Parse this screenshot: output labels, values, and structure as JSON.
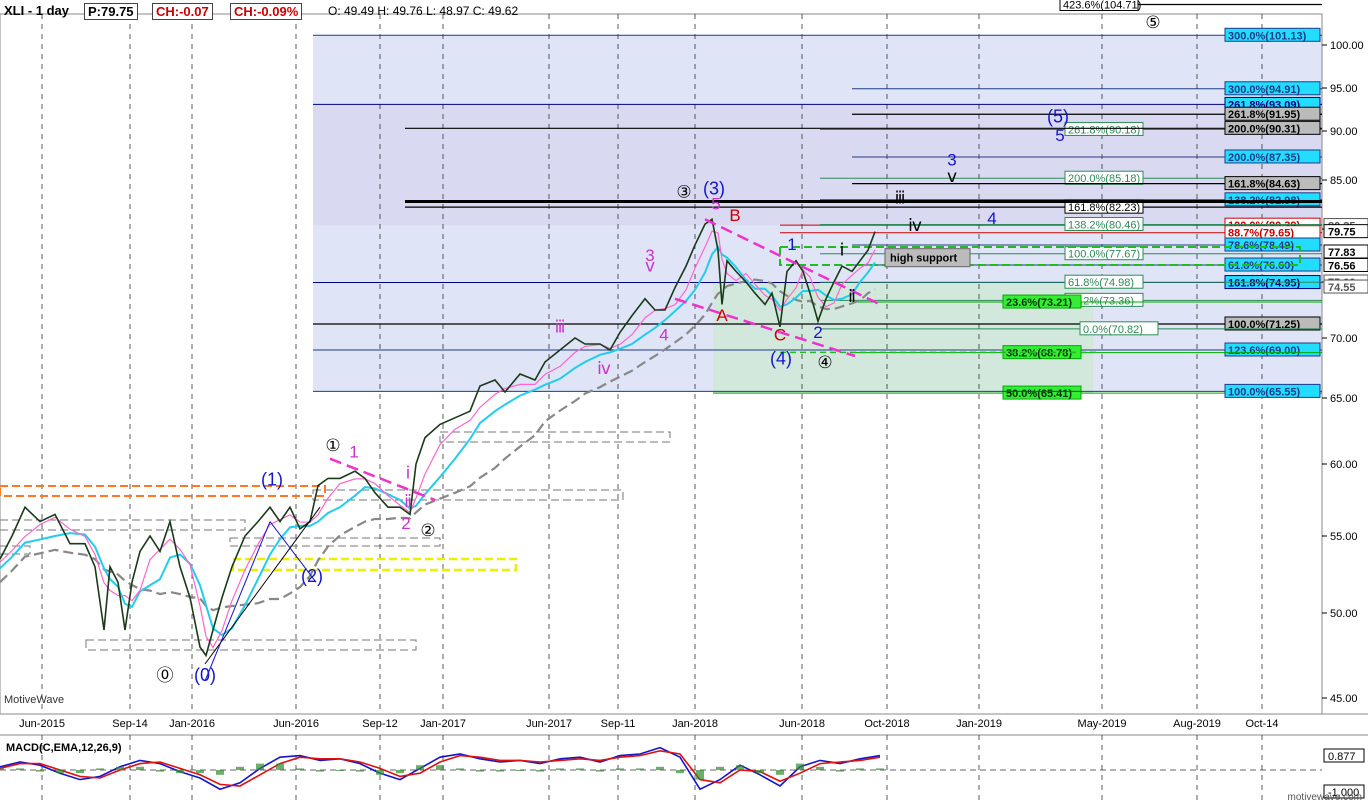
{
  "header": {
    "symbol": "XLI - 1 day",
    "price": "P:79.75",
    "change": "CH:-0.07",
    "change_pct": "CH:-0.09%",
    "ohlc": "O: 49.49  H: 49.76  L: 48.97  C: 49.62"
  },
  "watermark_left": "MotiveWave",
  "watermark_right": "motivewave.com",
  "chart_data": [
    {
      "type": "line",
      "title": "",
      "ylim": [
        43.5,
        104.5
      ],
      "y_ticks": [
        45,
        50,
        55,
        60,
        65,
        70,
        75,
        80,
        85,
        90,
        95,
        100
      ],
      "x_ticks": [
        "Jun-2015",
        "Sep-14",
        "Jan-2016",
        "Jun-2016",
        "Sep-12",
        "Jan-2017",
        "Jun-2017",
        "Sep-11",
        "Jan-2018",
        "Jun-2018",
        "Oct-2018",
        "Jan-2019",
        "May-2019",
        "Aug-2019",
        "Oct-14"
      ],
      "price_path": [
        [
          0,
          53.5
        ],
        [
          12,
          55
        ],
        [
          25,
          57
        ],
        [
          40,
          56
        ],
        [
          55,
          56.5
        ],
        [
          70,
          54.5
        ],
        [
          85,
          54.5
        ],
        [
          95,
          53
        ],
        [
          104,
          49
        ],
        [
          110,
          53
        ],
        [
          118,
          52
        ],
        [
          125,
          49
        ],
        [
          132,
          52
        ],
        [
          140,
          54
        ],
        [
          150,
          55
        ],
        [
          160,
          54
        ],
        [
          170,
          56
        ],
        [
          180,
          53
        ],
        [
          190,
          51
        ],
        [
          200,
          48
        ],
        [
          206,
          47.5
        ],
        [
          213,
          49
        ],
        [
          222,
          51
        ],
        [
          232,
          53
        ],
        [
          245,
          55
        ],
        [
          258,
          56
        ],
        [
          270,
          57
        ],
        [
          280,
          56
        ],
        [
          290,
          57
        ],
        [
          300,
          55.5
        ],
        [
          310,
          56
        ],
        [
          318,
          58.5
        ],
        [
          328,
          59
        ],
        [
          340,
          59
        ],
        [
          355,
          59.5
        ],
        [
          365,
          59
        ],
        [
          375,
          58
        ],
        [
          388,
          57
        ],
        [
          400,
          57
        ],
        [
          410,
          56.5
        ],
        [
          416,
          60
        ],
        [
          425,
          62
        ],
        [
          440,
          63
        ],
        [
          455,
          63.5
        ],
        [
          470,
          64
        ],
        [
          480,
          66
        ],
        [
          495,
          66.5
        ],
        [
          505,
          65.5
        ],
        [
          520,
          67
        ],
        [
          535,
          66.5
        ],
        [
          545,
          68
        ],
        [
          560,
          69
        ],
        [
          575,
          70
        ],
        [
          585,
          69.5
        ],
        [
          600,
          69.5
        ],
        [
          610,
          69
        ],
        [
          620,
          70.5
        ],
        [
          632,
          72
        ],
        [
          645,
          73.5
        ],
        [
          655,
          72.5
        ],
        [
          665,
          72.5
        ],
        [
          675,
          74.5
        ],
        [
          686,
          76.5
        ],
        [
          695,
          78.5
        ],
        [
          705,
          80.5
        ],
        [
          712,
          81
        ],
        [
          718,
          78
        ],
        [
          722,
          73
        ],
        [
          727,
          77
        ],
        [
          736,
          76
        ],
        [
          746,
          75
        ],
        [
          755,
          74
        ],
        [
          765,
          73
        ],
        [
          772,
          74
        ],
        [
          780,
          71
        ],
        [
          787,
          76
        ],
        [
          796,
          77
        ],
        [
          803,
          76
        ],
        [
          810,
          74
        ],
        [
          818,
          71.5
        ],
        [
          826,
          73.5
        ],
        [
          834,
          75
        ],
        [
          842,
          76.5
        ],
        [
          852,
          76
        ],
        [
          860,
          77
        ],
        [
          868,
          78
        ],
        [
          875,
          79.75
        ]
      ],
      "fib_levels": [
        {
          "label": "423.6%(104.71)",
          "price": 104.71,
          "color": "#000000"
        },
        {
          "label": "300.0%(101.13)",
          "price": 101.13,
          "color": "#1f3c88"
        },
        {
          "label": "300.0%(94.91)",
          "price": 94.91,
          "color": "#1f3c88"
        },
        {
          "label": "261.8%(93.09)",
          "price": 93.09,
          "color": "#000080"
        },
        {
          "label": "261.8%(91.95)",
          "price": 91.95,
          "color": "#000000"
        },
        {
          "label": "261.8%(90.18)",
          "price": 90.18,
          "color": "#2e8b57"
        },
        {
          "label": "200.0%(90.31)",
          "price": 90.31,
          "color": "#000000"
        },
        {
          "label": "200.0%(87.35)",
          "price": 87.35,
          "color": "#1f3c88"
        },
        {
          "label": "200.0%(85.18)",
          "price": 85.18,
          "color": "#2e8b57"
        },
        {
          "label": "161.8%(84.63)",
          "price": 84.63,
          "color": "#000000"
        },
        {
          "label": "138.2%(82.98)",
          "price": 82.98,
          "color": "#1f3c88"
        },
        {
          "label": "161.8%(82.23)",
          "price": 82.23,
          "color": "#000000"
        },
        {
          "label": "100.0%(80.39)",
          "price": 80.39,
          "color": "#cc0000"
        },
        {
          "label": "138.2%(80.46)",
          "price": 80.46,
          "color": "#2e8b57"
        },
        {
          "label": "88.7%(79.65)",
          "price": 79.65,
          "color": "#cc0000"
        },
        {
          "label": "78.6%(78.49)",
          "price": 78.49,
          "color": "#1f3c88"
        },
        {
          "label": "100.0%(77.67)",
          "price": 77.67,
          "color": "#2e8b57"
        },
        {
          "label": "61.8%(76.60)",
          "price": 76.6,
          "color": "#1f3c88"
        },
        {
          "label": "161.8%(74.95)",
          "price": 74.95,
          "color": "#000080"
        },
        {
          "label": "61.8%(74.98)",
          "price": 74.98,
          "color": "#2e8b57"
        },
        {
          "label": "38.2%(73.36)",
          "price": 73.36,
          "color": "#2e8b57"
        },
        {
          "label": "23.6%(73.21)",
          "price": 73.21,
          "color": "#00aa00"
        },
        {
          "label": "100.0%(71.25)",
          "price": 71.25,
          "color": "#000000"
        },
        {
          "label": "0.0%(70.82)",
          "price": 70.82,
          "color": "#2e8b57"
        },
        {
          "label": "123.6%(69.00)",
          "price": 69.0,
          "color": "#1f3c88"
        },
        {
          "label": "38.2%(68.78)",
          "price": 68.78,
          "color": "#00aa00"
        },
        {
          "label": "50.0%(65.41)",
          "price": 65.41,
          "color": "#00aa00"
        },
        {
          "label": "100.0%(65.55)",
          "price": 65.55,
          "color": "#1f3c88"
        }
      ],
      "price_markers": [
        {
          "label": "80.35",
          "price": 80.35,
          "color": "#555555"
        },
        {
          "label": "79.75",
          "price": 79.75,
          "color": "#000000"
        },
        {
          "label": "77.83",
          "price": 77.83,
          "color": "#000000"
        },
        {
          "label": "76.56",
          "price": 76.56,
          "color": "#000000"
        },
        {
          "label": "75.00",
          "price": 75.0,
          "color": "#555555"
        },
        {
          "label": "74.55",
          "price": 74.55,
          "color": "#555555"
        }
      ],
      "wave_labels": [
        {
          "text": "⓪",
          "price": 46,
          "color": "#000000"
        },
        {
          "text": "(0)",
          "price": 46,
          "color": "#1515cc"
        },
        {
          "text": "(1)",
          "price": 58.5,
          "color": "#1515cc"
        },
        {
          "text": "(2)",
          "price": 52,
          "color": "#1515cc"
        },
        {
          "text": "①",
          "price": 61,
          "color": "#000000"
        },
        {
          "text": "1",
          "price": 60.5,
          "color": "#cc33cc"
        },
        {
          "text": "2",
          "price": 55.5,
          "color": "#cc33cc"
        },
        {
          "text": "②",
          "price": 55,
          "color": "#000000"
        },
        {
          "text": "ⅰ",
          "price": 59,
          "color": "#cc33cc"
        },
        {
          "text": "ⅱ",
          "price": 57,
          "color": "#cc33cc"
        },
        {
          "text": "ⅲ",
          "price": 70.5,
          "color": "#cc33cc"
        },
        {
          "text": "ⅳ",
          "price": 67,
          "color": "#cc33cc"
        },
        {
          "text": "ⅴ",
          "price": 76,
          "color": "#cc33cc"
        },
        {
          "text": "3",
          "price": 77,
          "color": "#cc33cc"
        },
        {
          "text": "4",
          "price": 69.8,
          "color": "#cc33cc"
        },
        {
          "text": "③",
          "price": 83.2,
          "color": "#000000"
        },
        {
          "text": "(3)",
          "price": 83.5,
          "color": "#1515cc"
        },
        {
          "text": "5",
          "price": 82,
          "color": "#cc33cc"
        },
        {
          "text": "A",
          "price": 71.5,
          "color": "#cc0000"
        },
        {
          "text": "B",
          "price": 80.8,
          "color": "#cc0000"
        },
        {
          "text": "C",
          "price": 69.8,
          "color": "#cc0000"
        },
        {
          "text": "(4)",
          "price": 67.8,
          "color": "#1515cc"
        },
        {
          "text": "④",
          "price": 67.5,
          "color": "#000000"
        },
        {
          "text": "1",
          "price": 78,
          "color": "#1515cc"
        },
        {
          "text": "2",
          "price": 70,
          "color": "#1515cc"
        },
        {
          "text": "ⅰ",
          "price": 77.5,
          "color": "#000000"
        },
        {
          "text": "ⅱ",
          "price": 73.2,
          "color": "#000000"
        },
        {
          "text": "ⅲ",
          "price": 82.6,
          "color": "#000000"
        },
        {
          "text": "ⅳ",
          "price": 79.8,
          "color": "#000000"
        },
        {
          "text": "ⅴ",
          "price": 84.8,
          "color": "#000000"
        },
        {
          "text": "3",
          "price": 86.5,
          "color": "#1515cc"
        },
        {
          "text": "4",
          "price": 80.5,
          "color": "#1515cc"
        },
        {
          "text": "(5)",
          "price": 91,
          "color": "#1515cc"
        },
        {
          "text": "5",
          "price": 89,
          "color": "#1515cc"
        },
        {
          "text": "⑤",
          "price": 102,
          "color": "#000000"
        }
      ],
      "annotations": [
        "high support"
      ]
    },
    {
      "type": "line",
      "title": "MACD(C,EMA,12,26,9)",
      "series": [
        {
          "color": "#1515cc",
          "values": [
            0.2,
            0.5,
            0.3,
            -0.2,
            -0.6,
            -0.4,
            0.2,
            0.6,
            0.4,
            -0.1,
            -0.5,
            -1.2,
            -0.8,
            0.1,
            0.8,
            0.9,
            0.6,
            0.7,
            0.4,
            -0.2,
            -0.6,
            0.1,
            0.8,
            1.0,
            0.7,
            0.5,
            0.6,
            0.4,
            0.7,
            0.8,
            0.5,
            0.9,
            1.0,
            1.4,
            0.8,
            -1.2,
            -0.6,
            0.3,
            -0.3,
            -1.0,
            0.2,
            0.6,
            0.4,
            0.7,
            0.9
          ]
        },
        {
          "color": "#dd1111",
          "values": [
            0.1,
            0.4,
            0.4,
            0.0,
            -0.4,
            -0.5,
            0.0,
            0.4,
            0.5,
            0.1,
            -0.3,
            -0.9,
            -1.0,
            -0.3,
            0.4,
            0.8,
            0.7,
            0.7,
            0.5,
            0.1,
            -0.4,
            -0.2,
            0.5,
            0.9,
            0.8,
            0.6,
            0.6,
            0.5,
            0.6,
            0.7,
            0.6,
            0.8,
            0.9,
            1.2,
            1.0,
            -0.6,
            -0.8,
            0.0,
            -0.1,
            -0.7,
            -0.2,
            0.4,
            0.5,
            0.6,
            0.8
          ]
        }
      ],
      "y_ticks": [
        0.877,
        -1.0
      ]
    }
  ]
}
